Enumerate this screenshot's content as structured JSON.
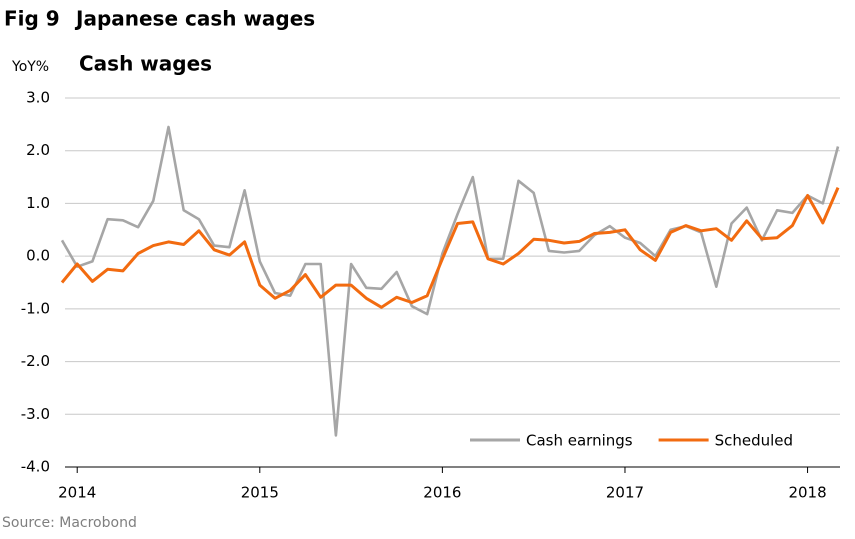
{
  "chart_data": {
    "type": "line",
    "figure_label": "Fig 9",
    "title": "Japanese cash wages",
    "subtitle": "Cash wages",
    "y_unit": "YoY%",
    "source": "Source: Macrobond",
    "x": [
      2013.9167,
      2014,
      2014.0833,
      2014.1667,
      2014.25,
      2014.3333,
      2014.4167,
      2014.5,
      2014.5833,
      2014.6667,
      2014.75,
      2014.8333,
      2014.9167,
      2015,
      2015.0833,
      2015.1667,
      2015.25,
      2015.3333,
      2015.4167,
      2015.5,
      2015.5833,
      2015.6667,
      2015.75,
      2015.8333,
      2015.9167,
      2016,
      2016.0833,
      2016.1667,
      2016.25,
      2016.3333,
      2016.4167,
      2016.5,
      2016.5833,
      2016.6667,
      2016.75,
      2016.8333,
      2016.9167,
      2017,
      2017.0833,
      2017.1667,
      2017.25,
      2017.3333,
      2017.4167,
      2017.5,
      2017.5833,
      2017.6667,
      2017.75,
      2017.8333,
      2017.9167,
      2018,
      2018.0833,
      2018.1667
    ],
    "series": [
      {
        "name": "Cash earnings",
        "color": "#a6a6a6",
        "values": [
          0.3,
          -0.2,
          -0.1,
          0.7,
          0.68,
          0.55,
          1.05,
          2.45,
          0.87,
          0.7,
          0.2,
          0.17,
          1.25,
          -0.1,
          -0.7,
          -0.75,
          -0.15,
          -0.15,
          -3.4,
          -0.15,
          -0.6,
          -0.62,
          -0.3,
          -0.95,
          -1.1,
          0.05,
          0.8,
          1.5,
          -0.05,
          -0.05,
          1.43,
          1.2,
          0.1,
          0.07,
          0.1,
          0.4,
          0.57,
          0.35,
          0.25,
          0.0,
          0.5,
          0.57,
          0.45,
          -0.58,
          0.62,
          0.92,
          0.3,
          0.87,
          0.82,
          1.15,
          1.0,
          2.08
        ]
      },
      {
        "name": "Scheduled",
        "color": "#f26b10",
        "values": [
          -0.5,
          -0.15,
          -0.48,
          -0.25,
          -0.28,
          0.05,
          0.2,
          0.27,
          0.22,
          0.48,
          0.12,
          0.02,
          0.27,
          -0.55,
          -0.8,
          -0.65,
          -0.35,
          -0.78,
          -0.55,
          -0.55,
          -0.8,
          -0.97,
          -0.78,
          -0.88,
          -0.75,
          -0.05,
          0.62,
          0.65,
          -0.05,
          -0.15,
          0.05,
          0.32,
          0.3,
          0.25,
          0.28,
          0.43,
          0.45,
          0.5,
          0.12,
          -0.08,
          0.45,
          0.58,
          0.48,
          0.52,
          0.3,
          0.67,
          0.33,
          0.35,
          0.58,
          1.15,
          0.63,
          1.3
        ]
      }
    ],
    "xlim": [
      2013.9167,
      2018.1667
    ],
    "xticks": [
      2014,
      2015,
      2016,
      2017,
      2018
    ],
    "ylim": [
      -4,
      3
    ],
    "yticks": [
      {
        "value": 3,
        "label": "3.0"
      },
      {
        "value": 2,
        "label": "2.0"
      },
      {
        "value": 1,
        "label": "1.0"
      },
      {
        "value": 0,
        "label": "0.0"
      },
      {
        "value": -1,
        "label": "-1.0"
      },
      {
        "value": -2,
        "label": "-2.0"
      },
      {
        "value": -3,
        "label": "-3.0"
      },
      {
        "value": -4,
        "label": "-4.0"
      }
    ],
    "grid": true,
    "legend": "lower right"
  }
}
